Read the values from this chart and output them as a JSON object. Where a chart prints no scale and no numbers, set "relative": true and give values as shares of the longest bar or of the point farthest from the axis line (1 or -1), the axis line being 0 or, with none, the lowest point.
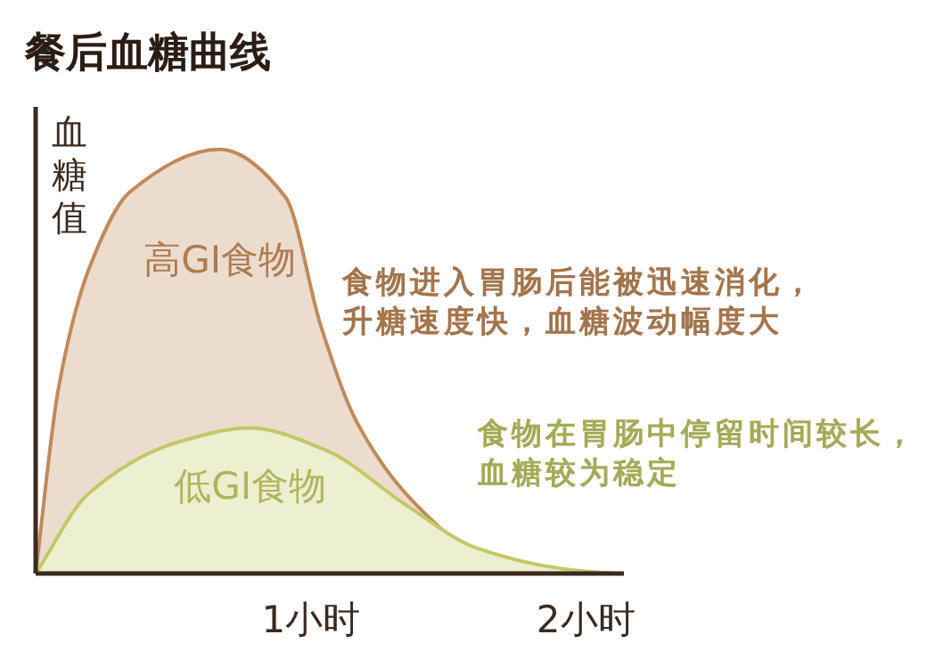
{
  "chart_data": {
    "type": "area",
    "title": "餐后血糖曲线",
    "ylabel": "血糖值",
    "relative": true,
    "xlim": [
      0,
      2.14
    ],
    "xticks": [
      {
        "value": 1,
        "label": "1小时"
      },
      {
        "value": 2,
        "label": "2小时"
      }
    ],
    "series": [
      {
        "name": "高GI食物",
        "color": "#c08a5a",
        "x": [
          0,
          0.084,
          0.195,
          0.344,
          0.669,
          0.909,
          1.039,
          1.169,
          1.383,
          1.604,
          1.929,
          2.1
        ],
        "values": [
          0,
          0.44,
          0.72,
          0.9,
          1,
          0.887,
          0.58,
          0.356,
          0.163,
          0.05,
          0,
          0
        ]
      },
      {
        "name": "低GI食物",
        "color": "#c3c866",
        "x": [
          0,
          0.195,
          0.519,
          0.779,
          1.058,
          1.344,
          1.604,
          1.929,
          2.1
        ],
        "values": [
          0,
          0.19,
          0.31,
          0.343,
          0.29,
          0.163,
          0.06,
          0.01,
          0
        ]
      }
    ],
    "annotations": [
      "食物进入胃肠后能被迅速消化，升糖速度快，血糖波动幅度大",
      "食物在胃肠中停留时间较长，血糖较为稳定"
    ],
    "grid": false
  }
}
